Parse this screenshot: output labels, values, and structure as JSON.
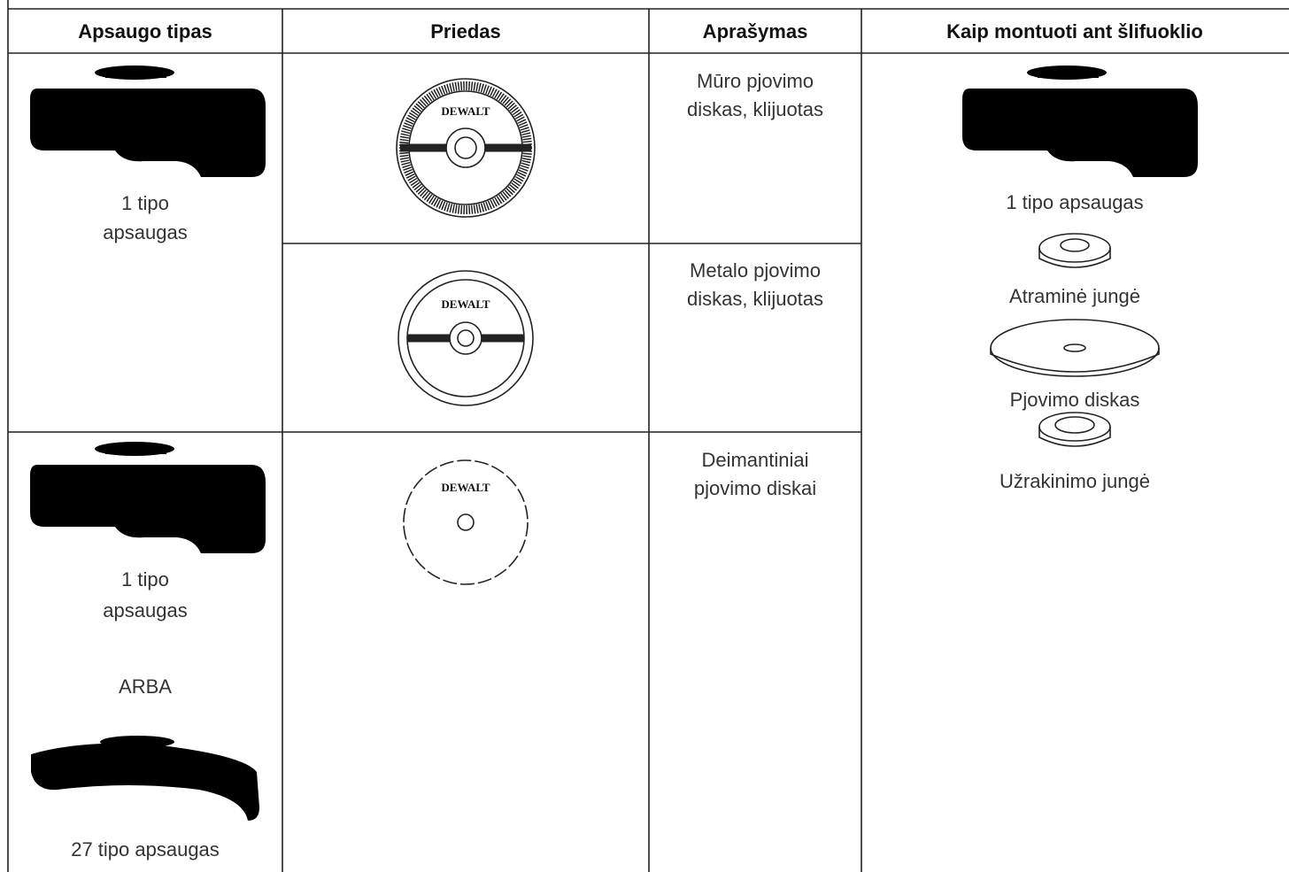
{
  "table": {
    "headers": [
      "Apsaugo tipas",
      "Priedas",
      "Aprašymas",
      "Kaip montuoti ant šlifuoklio"
    ],
    "guards": [
      {
        "lines": [
          "1 tipo",
          "apsaugas"
        ]
      },
      {
        "lines": [
          "1 tipo",
          "apsaugas"
        ],
        "or": "ARBA",
        "alternative": "27 tipo apsaugas"
      }
    ],
    "brand": "DEWALT",
    "accessories": [
      {
        "description": [
          "Mūro pjovimo",
          "diskas, klijuotas"
        ]
      },
      {
        "description": [
          "Metalo pjovimo",
          "diskas, klijuotas"
        ]
      },
      {
        "description": [
          "Deimantiniai",
          "pjovimo diskai"
        ]
      }
    ],
    "mounting": [
      "1 tipo apsaugas",
      "Atraminė jungė",
      "Pjovimo diskas",
      "Užrakinimo jungė"
    ]
  }
}
